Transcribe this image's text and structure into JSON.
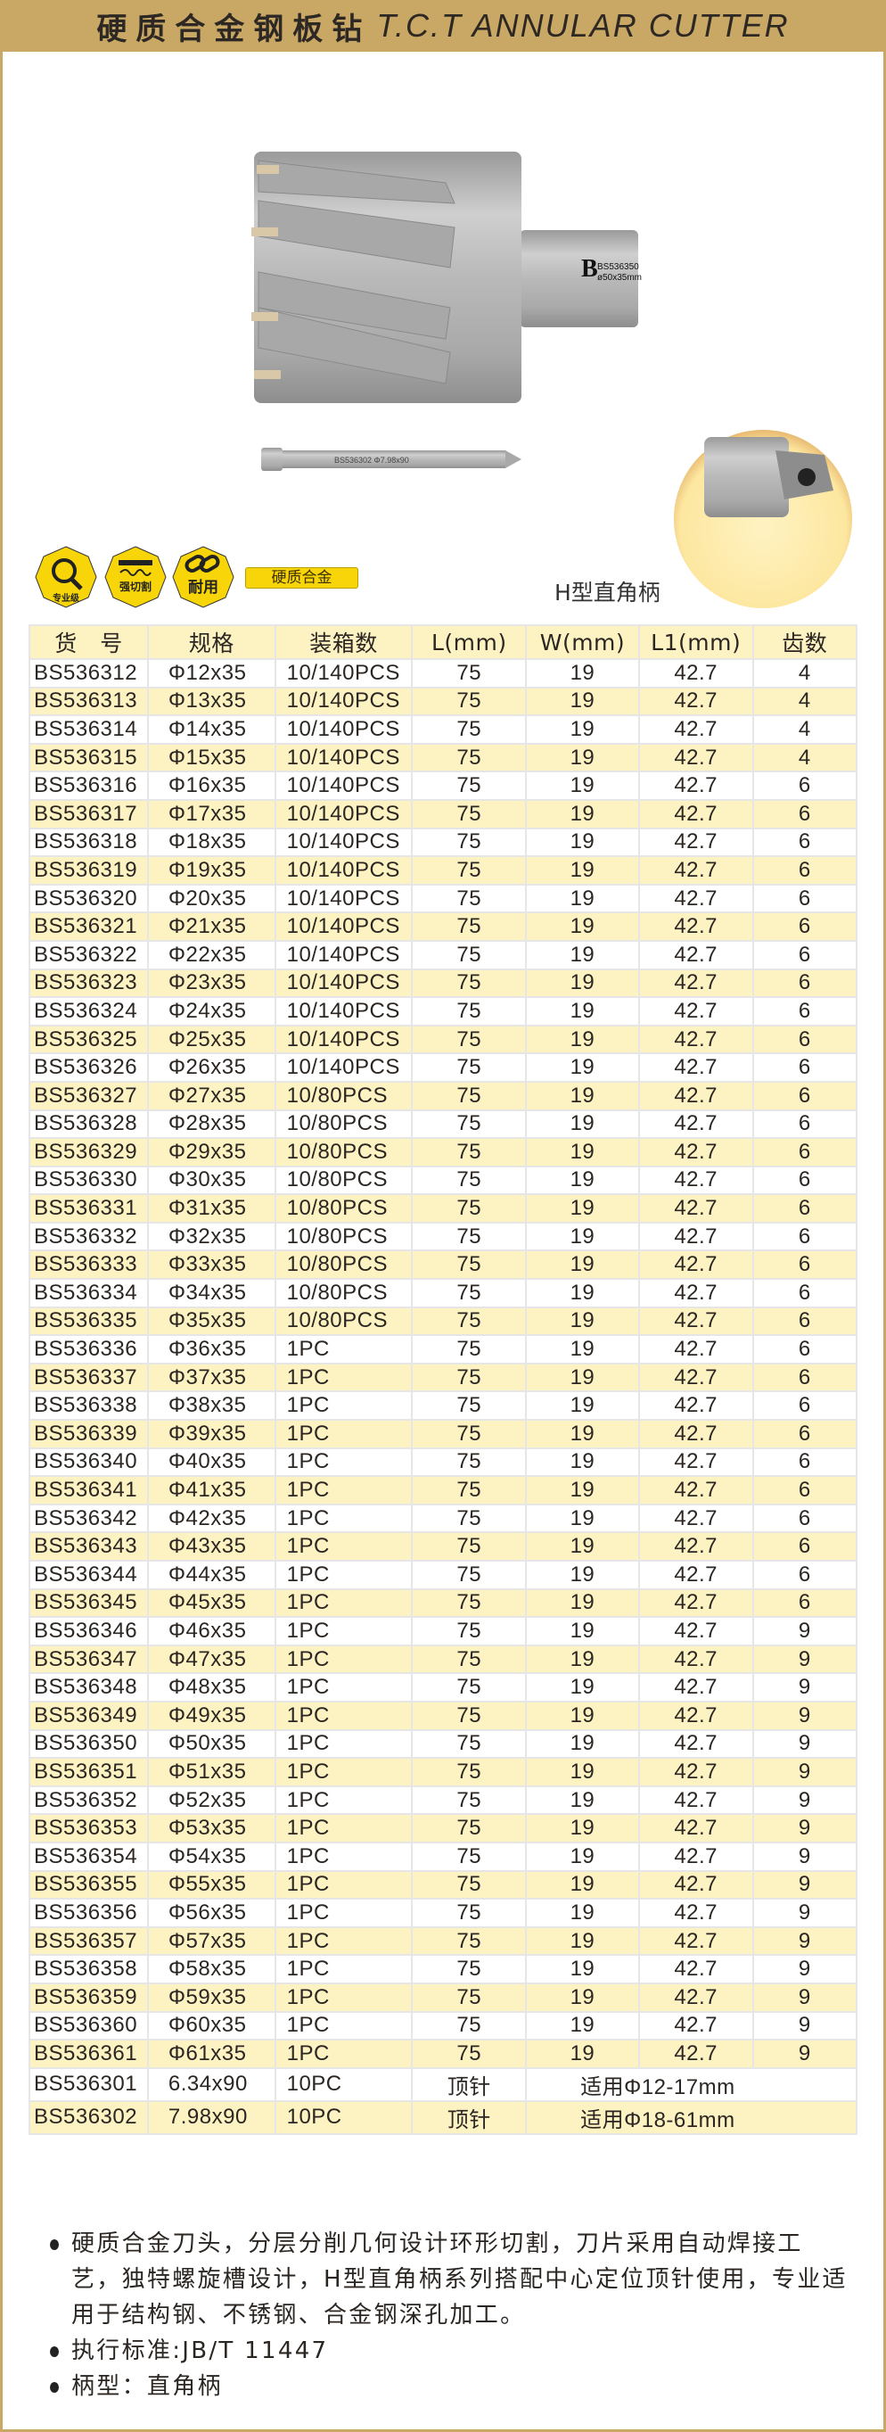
{
  "header": {
    "title_cn": "硬质合金钢板钻",
    "title_en": "T.C.T ANNULAR CUTTER"
  },
  "product": {
    "cutter_label_line1": "BS536350",
    "cutter_label_line2": "ø50x35mm",
    "pin_label": "BS536302  Φ7.98x90",
    "logo_letter": "B"
  },
  "badges": [
    {
      "label": "专业级",
      "icon": "gear-magnifier-icon"
    },
    {
      "label": "强切割",
      "icon": "cutting-blade-icon"
    },
    {
      "label": "耐用",
      "icon": "chain-link-icon"
    }
  ],
  "alloy_button": "硬质合金",
  "shank_label": "H型直角柄",
  "colors": {
    "gold": "#c8a864",
    "row_highlight": "#fdf3c2",
    "badge_yellow": "#f7d508"
  },
  "table": {
    "headers": [
      "货　号",
      "规格",
      "装箱数",
      "L(mm)",
      "W(mm)",
      "L1(mm)",
      "齿数"
    ],
    "rows": [
      [
        "BS536312",
        "Φ12x35",
        "10/140PCS",
        "75",
        "19",
        "42.7",
        "4"
      ],
      [
        "BS536313",
        "Φ13x35",
        "10/140PCS",
        "75",
        "19",
        "42.7",
        "4"
      ],
      [
        "BS536314",
        "Φ14x35",
        "10/140PCS",
        "75",
        "19",
        "42.7",
        "4"
      ],
      [
        "BS536315",
        "Φ15x35",
        "10/140PCS",
        "75",
        "19",
        "42.7",
        "4"
      ],
      [
        "BS536316",
        "Φ16x35",
        "10/140PCS",
        "75",
        "19",
        "42.7",
        "6"
      ],
      [
        "BS536317",
        "Φ17x35",
        "10/140PCS",
        "75",
        "19",
        "42.7",
        "6"
      ],
      [
        "BS536318",
        "Φ18x35",
        "10/140PCS",
        "75",
        "19",
        "42.7",
        "6"
      ],
      [
        "BS536319",
        "Φ19x35",
        "10/140PCS",
        "75",
        "19",
        "42.7",
        "6"
      ],
      [
        "BS536320",
        "Φ20x35",
        "10/140PCS",
        "75",
        "19",
        "42.7",
        "6"
      ],
      [
        "BS536321",
        "Φ21x35",
        "10/140PCS",
        "75",
        "19",
        "42.7",
        "6"
      ],
      [
        "BS536322",
        "Φ22x35",
        "10/140PCS",
        "75",
        "19",
        "42.7",
        "6"
      ],
      [
        "BS536323",
        "Φ23x35",
        "10/140PCS",
        "75",
        "19",
        "42.7",
        "6"
      ],
      [
        "BS536324",
        "Φ24x35",
        "10/140PCS",
        "75",
        "19",
        "42.7",
        "6"
      ],
      [
        "BS536325",
        "Φ25x35",
        "10/140PCS",
        "75",
        "19",
        "42.7",
        "6"
      ],
      [
        "BS536326",
        "Φ26x35",
        "10/140PCS",
        "75",
        "19",
        "42.7",
        "6"
      ],
      [
        "BS536327",
        "Φ27x35",
        "10/80PCS",
        "75",
        "19",
        "42.7",
        "6"
      ],
      [
        "BS536328",
        "Φ28x35",
        "10/80PCS",
        "75",
        "19",
        "42.7",
        "6"
      ],
      [
        "BS536329",
        "Φ29x35",
        "10/80PCS",
        "75",
        "19",
        "42.7",
        "6"
      ],
      [
        "BS536330",
        "Φ30x35",
        "10/80PCS",
        "75",
        "19",
        "42.7",
        "6"
      ],
      [
        "BS536331",
        "Φ31x35",
        "10/80PCS",
        "75",
        "19",
        "42.7",
        "6"
      ],
      [
        "BS536332",
        "Φ32x35",
        "10/80PCS",
        "75",
        "19",
        "42.7",
        "6"
      ],
      [
        "BS536333",
        "Φ33x35",
        "10/80PCS",
        "75",
        "19",
        "42.7",
        "6"
      ],
      [
        "BS536334",
        "Φ34x35",
        "10/80PCS",
        "75",
        "19",
        "42.7",
        "6"
      ],
      [
        "BS536335",
        "Φ35x35",
        "10/80PCS",
        "75",
        "19",
        "42.7",
        "6"
      ],
      [
        "BS536336",
        "Φ36x35",
        "1PC",
        "75",
        "19",
        "42.7",
        "6"
      ],
      [
        "BS536337",
        "Φ37x35",
        "1PC",
        "75",
        "19",
        "42.7",
        "6"
      ],
      [
        "BS536338",
        "Φ38x35",
        "1PC",
        "75",
        "19",
        "42.7",
        "6"
      ],
      [
        "BS536339",
        "Φ39x35",
        "1PC",
        "75",
        "19",
        "42.7",
        "6"
      ],
      [
        "BS536340",
        "Φ40x35",
        "1PC",
        "75",
        "19",
        "42.7",
        "6"
      ],
      [
        "BS536341",
        "Φ41x35",
        "1PC",
        "75",
        "19",
        "42.7",
        "6"
      ],
      [
        "BS536342",
        "Φ42x35",
        "1PC",
        "75",
        "19",
        "42.7",
        "6"
      ],
      [
        "BS536343",
        "Φ43x35",
        "1PC",
        "75",
        "19",
        "42.7",
        "6"
      ],
      [
        "BS536344",
        "Φ44x35",
        "1PC",
        "75",
        "19",
        "42.7",
        "6"
      ],
      [
        "BS536345",
        "Φ45x35",
        "1PC",
        "75",
        "19",
        "42.7",
        "6"
      ],
      [
        "BS536346",
        "Φ46x35",
        "1PC",
        "75",
        "19",
        "42.7",
        "9"
      ],
      [
        "BS536347",
        "Φ47x35",
        "1PC",
        "75",
        "19",
        "42.7",
        "9"
      ],
      [
        "BS536348",
        "Φ48x35",
        "1PC",
        "75",
        "19",
        "42.7",
        "9"
      ],
      [
        "BS536349",
        "Φ49x35",
        "1PC",
        "75",
        "19",
        "42.7",
        "9"
      ],
      [
        "BS536350",
        "Φ50x35",
        "1PC",
        "75",
        "19",
        "42.7",
        "9"
      ],
      [
        "BS536351",
        "Φ51x35",
        "1PC",
        "75",
        "19",
        "42.7",
        "9"
      ],
      [
        "BS536352",
        "Φ52x35",
        "1PC",
        "75",
        "19",
        "42.7",
        "9"
      ],
      [
        "BS536353",
        "Φ53x35",
        "1PC",
        "75",
        "19",
        "42.7",
        "9"
      ],
      [
        "BS536354",
        "Φ54x35",
        "1PC",
        "75",
        "19",
        "42.7",
        "9"
      ],
      [
        "BS536355",
        "Φ55x35",
        "1PC",
        "75",
        "19",
        "42.7",
        "9"
      ],
      [
        "BS536356",
        "Φ56x35",
        "1PC",
        "75",
        "19",
        "42.7",
        "9"
      ],
      [
        "BS536357",
        "Φ57x35",
        "1PC",
        "75",
        "19",
        "42.7",
        "9"
      ],
      [
        "BS536358",
        "Φ58x35",
        "1PC",
        "75",
        "19",
        "42.7",
        "9"
      ],
      [
        "BS536359",
        "Φ59x35",
        "1PC",
        "75",
        "19",
        "42.7",
        "9"
      ],
      [
        "BS536360",
        "Φ60x35",
        "1PC",
        "75",
        "19",
        "42.7",
        "9"
      ],
      [
        "BS536361",
        "Φ61x35",
        "1PC",
        "75",
        "19",
        "42.7",
        "9"
      ]
    ],
    "pin_rows": [
      [
        "BS536301",
        "6.34x90",
        "10PC",
        "顶针",
        "适用Φ12-17mm"
      ],
      [
        "BS536302",
        "7.98x90",
        "10PC",
        "顶针",
        "适用Φ18-61mm"
      ]
    ]
  },
  "bullets": [
    "硬质合金刀头，分层分削几何设计环形切割，刀片采用自动焊接工艺，独特螺旋槽设计，H型直角柄系列搭配中心定位顶针使用，专业适用于结构钢、不锈钢、合金钢深孔加工。",
    "执行标准:JB/T 11447",
    "柄型：直角柄"
  ]
}
